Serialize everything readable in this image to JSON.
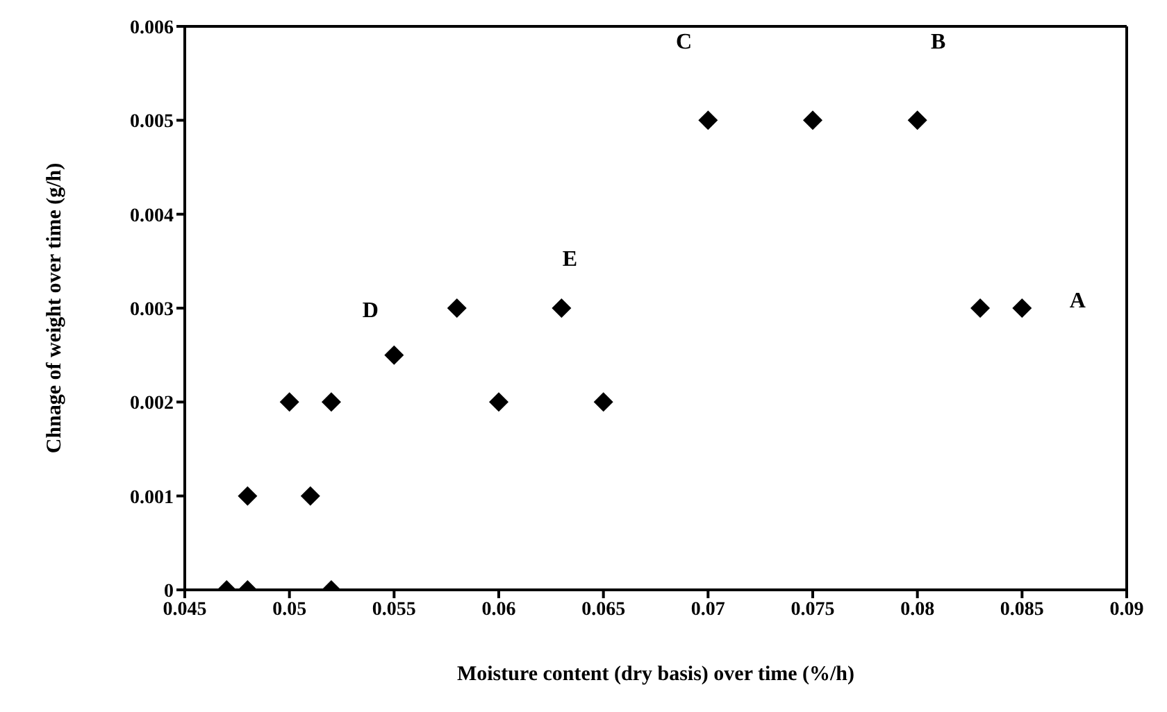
{
  "chart_data": {
    "type": "scatter",
    "xlabel": "Moisture content (dry basis) over time (%/h)",
    "ylabel": "Chnage of weight over time (g/h)",
    "x": [
      0.047,
      0.048,
      0.048,
      0.05,
      0.051,
      0.052,
      0.052,
      0.055,
      0.058,
      0.06,
      0.063,
      0.065,
      0.07,
      0.075,
      0.08,
      0.083,
      0.085
    ],
    "series": [
      {
        "color": "#000000",
        "values": [
          0,
          0,
          0.001,
          0.002,
          0.001,
          0.002,
          0,
          0.0025,
          0.003,
          0.002,
          0.003,
          0.002,
          0.005,
          0.005,
          0.005,
          0.003,
          0.003
        ]
      }
    ],
    "xlim": [
      0.045,
      0.09
    ],
    "xticks": [
      0.045,
      0.05,
      0.055,
      0.06,
      0.065,
      0.07,
      0.075,
      0.08,
      0.085,
      0.09
    ],
    "ylim": [
      0,
      0.006
    ],
    "yticks": [
      0,
      0.001,
      0.002,
      0.003,
      0.004,
      0.005,
      0.006
    ],
    "marker": "diamond",
    "grid": false,
    "legend": false,
    "annotations": [
      {
        "text": "A",
        "x": 0.085,
        "y": 0.003
      },
      "B",
      "C",
      {
        "text": "D",
        "x": 0.055,
        "y": 0.0025
      },
      {
        "text": "E",
        "x": 0.063,
        "y": 0.003
      }
    ]
  }
}
